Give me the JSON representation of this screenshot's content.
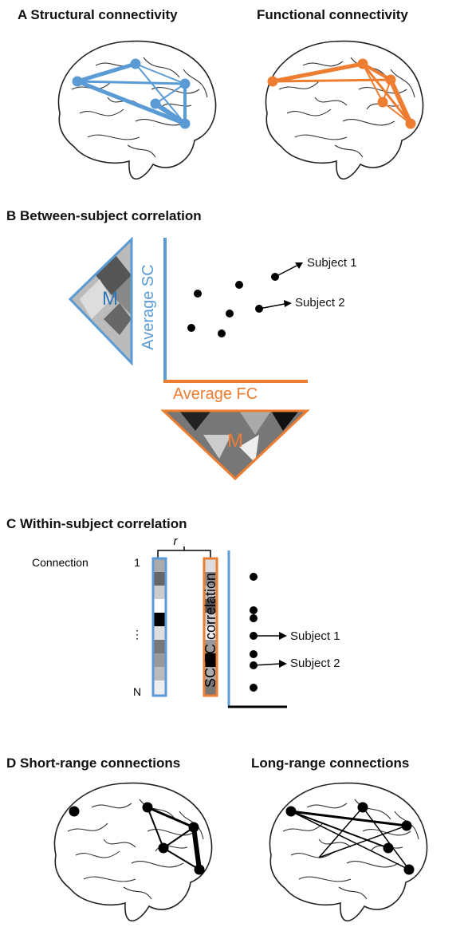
{
  "panel_a": {
    "title": "A Structural connectivity",
    "title_right": "Functional connectivity"
  },
  "panel_b": {
    "title": "B Between-subject correlation",
    "matrix_sc_label": "M",
    "y_axis": "Average SC",
    "x_axis": "Average FC",
    "matrix_fc_label": "M",
    "subject_1": "Subject 1",
    "subject_2": "Subject 2"
  },
  "panel_c": {
    "title": "C Within-subject correlation",
    "r_label": "r",
    "connection_label": "Connection",
    "first_index": "1",
    "ellipsis": "⋮",
    "last_index": "N",
    "y_axis": "SC-FC correlation",
    "subject_1": "Subject 1",
    "subject_2": "Subject 2"
  },
  "panel_d": {
    "title": "D Short-range connections",
    "title_right": "Long-range connections"
  }
}
